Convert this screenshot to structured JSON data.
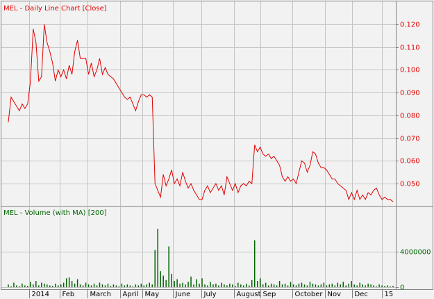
{
  "chart_data": [
    {
      "type": "line",
      "title": "MEL - Daily Line Chart [Close]",
      "color": "#e00000",
      "grid": true,
      "xlim": [
        -2.5,
        140
      ],
      "ylim": [
        0.0402,
        0.1301
      ],
      "yticks": [
        {
          "value": 0.05,
          "label": "0.050"
        },
        {
          "value": 0.06,
          "label": "0.060"
        },
        {
          "value": 0.07,
          "label": "0.070"
        },
        {
          "value": 0.08,
          "label": "0.080"
        },
        {
          "value": 0.09,
          "label": "0.090"
        },
        {
          "value": 0.1,
          "label": "0.100"
        },
        {
          "value": 0.11,
          "label": "0.110"
        },
        {
          "value": 0.12,
          "label": "0.120"
        }
      ],
      "values": [
        0.077,
        0.088,
        0.086,
        0.084,
        0.082,
        0.085,
        0.083,
        0.085,
        0.095,
        0.118,
        0.112,
        0.095,
        0.097,
        0.12,
        0.112,
        0.108,
        0.103,
        0.095,
        0.1,
        0.097,
        0.1,
        0.096,
        0.102,
        0.098,
        0.108,
        0.113,
        0.105,
        0.105,
        0.105,
        0.098,
        0.103,
        0.097,
        0.1,
        0.105,
        0.098,
        0.101,
        0.098,
        0.097,
        0.096,
        0.094,
        0.092,
        0.09,
        0.088,
        0.087,
        0.088,
        0.085,
        0.082,
        0.086,
        0.089,
        0.089,
        0.088,
        0.089,
        0.088,
        0.05,
        0.047,
        0.044,
        0.054,
        0.049,
        0.052,
        0.056,
        0.05,
        0.052,
        0.049,
        0.055,
        0.051,
        0.048,
        0.05,
        0.047,
        0.045,
        0.043,
        0.043,
        0.047,
        0.049,
        0.046,
        0.048,
        0.05,
        0.047,
        0.049,
        0.045,
        0.053,
        0.05,
        0.047,
        0.05,
        0.046,
        0.049,
        0.05,
        0.049,
        0.051,
        0.05,
        0.067,
        0.064,
        0.066,
        0.063,
        0.062,
        0.063,
        0.061,
        0.062,
        0.06,
        0.058,
        0.053,
        0.051,
        0.053,
        0.051,
        0.052,
        0.05,
        0.055,
        0.06,
        0.059,
        0.055,
        0.058,
        0.064,
        0.063,
        0.059,
        0.057,
        0.057,
        0.056,
        0.054,
        0.052,
        0.052,
        0.05,
        0.049,
        0.048,
        0.047,
        0.043,
        0.046,
        0.043,
        0.047,
        0.043,
        0.045,
        0.043,
        0.046,
        0.045,
        0.047,
        0.048,
        0.045,
        0.043,
        0.044,
        0.043,
        0.043,
        0.042
      ]
    },
    {
      "type": "bar",
      "title": "MEL - Volume (with MA) [200]",
      "color": "#006400",
      "grid": true,
      "xlim": [
        -2.5,
        140
      ],
      "xticks": [
        {
          "value": 7.5,
          "label": "2014"
        },
        {
          "value": 18.5,
          "label": "Feb"
        },
        {
          "value": 28.6,
          "label": "March"
        },
        {
          "value": 40.4,
          "label": "April"
        },
        {
          "value": 48.4,
          "label": "May"
        },
        {
          "value": 59.4,
          "label": "June"
        },
        {
          "value": 69.7,
          "label": "July"
        },
        {
          "value": 81.5,
          "label": "August"
        },
        {
          "value": 91.2,
          "label": "Sep"
        },
        {
          "value": 102.5,
          "label": "October"
        },
        {
          "value": 114.3,
          "label": "Nov"
        },
        {
          "value": 124.1,
          "label": "Dec"
        },
        {
          "value": 135.1,
          "label": "15"
        }
      ],
      "ylim": [
        -240000,
        9040000
      ],
      "yticks": [
        0,
        4000000
      ],
      "values": [
        300000,
        100000,
        500000,
        200000,
        100000,
        400000,
        200000,
        150000,
        600000,
        300000,
        700000,
        200000,
        500000,
        400000,
        300000,
        200000,
        150000,
        400000,
        200000,
        300000,
        500000,
        1000000,
        1100000,
        700000,
        400000,
        900000,
        300000,
        200000,
        500000,
        300000,
        200000,
        400000,
        200000,
        500000,
        300000,
        200000,
        400000,
        150000,
        300000,
        200000,
        100000,
        400000,
        200000,
        300000,
        200000,
        100000,
        300000,
        200000,
        400000,
        200000,
        300000,
        500000,
        300000,
        4200000,
        6600000,
        1800000,
        1300000,
        800000,
        4600000,
        1500000,
        700000,
        900000,
        400000,
        500000,
        300000,
        600000,
        1200000,
        300000,
        900000,
        400000,
        1000000,
        300000,
        200000,
        600000,
        300000,
        400000,
        200000,
        500000,
        300000,
        200000,
        400000,
        300000,
        150000,
        500000,
        300000,
        200000,
        400000,
        200000,
        800000,
        5300000,
        700000,
        1000000,
        300000,
        500000,
        200000,
        400000,
        300000,
        200000,
        700000,
        300000,
        400000,
        200000,
        600000,
        300000,
        200000,
        400000,
        500000,
        300000,
        200000,
        600000,
        400000,
        300000,
        200000,
        300000,
        500000,
        200000,
        300000,
        400000,
        200000,
        500000,
        300000,
        600000,
        200000,
        400000,
        700000,
        300000,
        200000,
        500000,
        300000,
        200000,
        400000,
        300000,
        200000,
        100000,
        300000,
        200000,
        150000,
        200000,
        100000,
        150000
      ]
    }
  ]
}
